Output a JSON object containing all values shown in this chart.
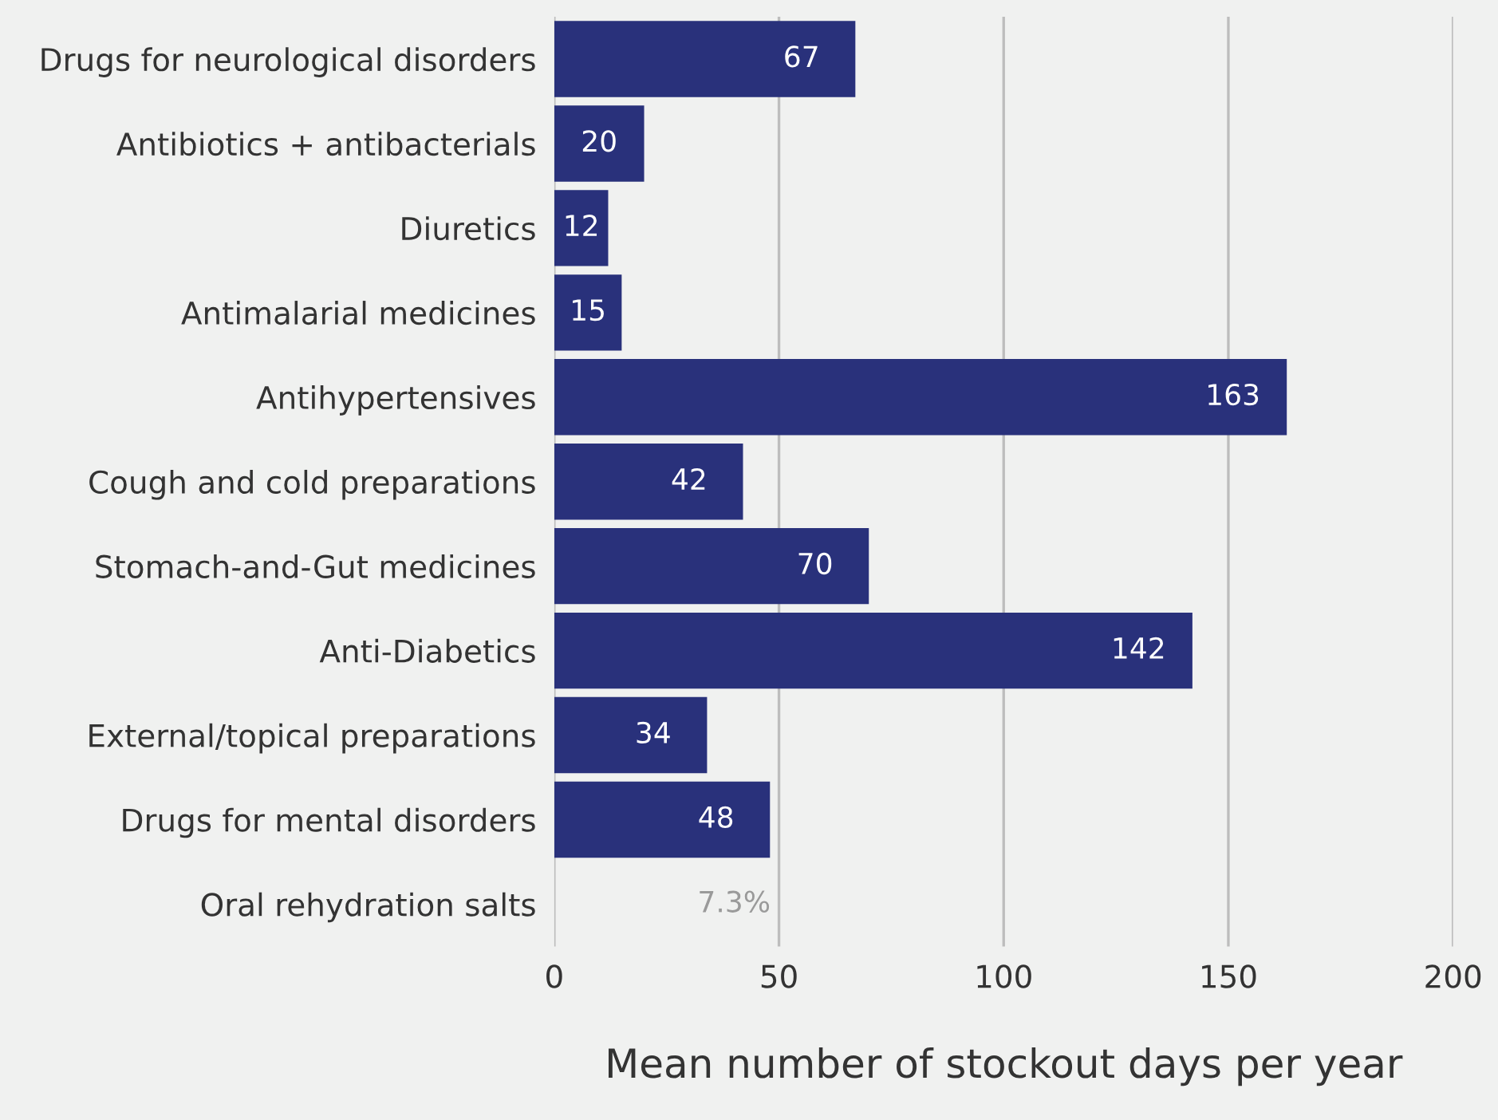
{
  "chart_data": {
    "type": "bar",
    "orientation": "horizontal",
    "xlabel": "Mean number of stockout days per year",
    "categories": [
      "Drugs for neurological disorders",
      "Antibiotics + antibacterials",
      "Diuretics",
      "Antimalarial medicines",
      "Antihypertensives",
      "Cough and cold preparations",
      "Stomach-and-Gut medicines",
      "Anti-Diabetics",
      "External/topical preparations",
      "Drugs for mental disorders",
      "Oral rehydration salts"
    ],
    "values": [
      67,
      20,
      12,
      15,
      163,
      42,
      70,
      142,
      34,
      48,
      null
    ],
    "value_labels": [
      "67",
      "20",
      "12",
      "15",
      "163",
      "42",
      "70",
      "142",
      "34",
      "48",
      null
    ],
    "annotations": [
      "7.3%"
    ],
    "color": "#29317b",
    "xlim": [
      0,
      200
    ],
    "xticks": [
      0,
      50,
      100,
      150,
      200
    ],
    "grid": "x"
  }
}
